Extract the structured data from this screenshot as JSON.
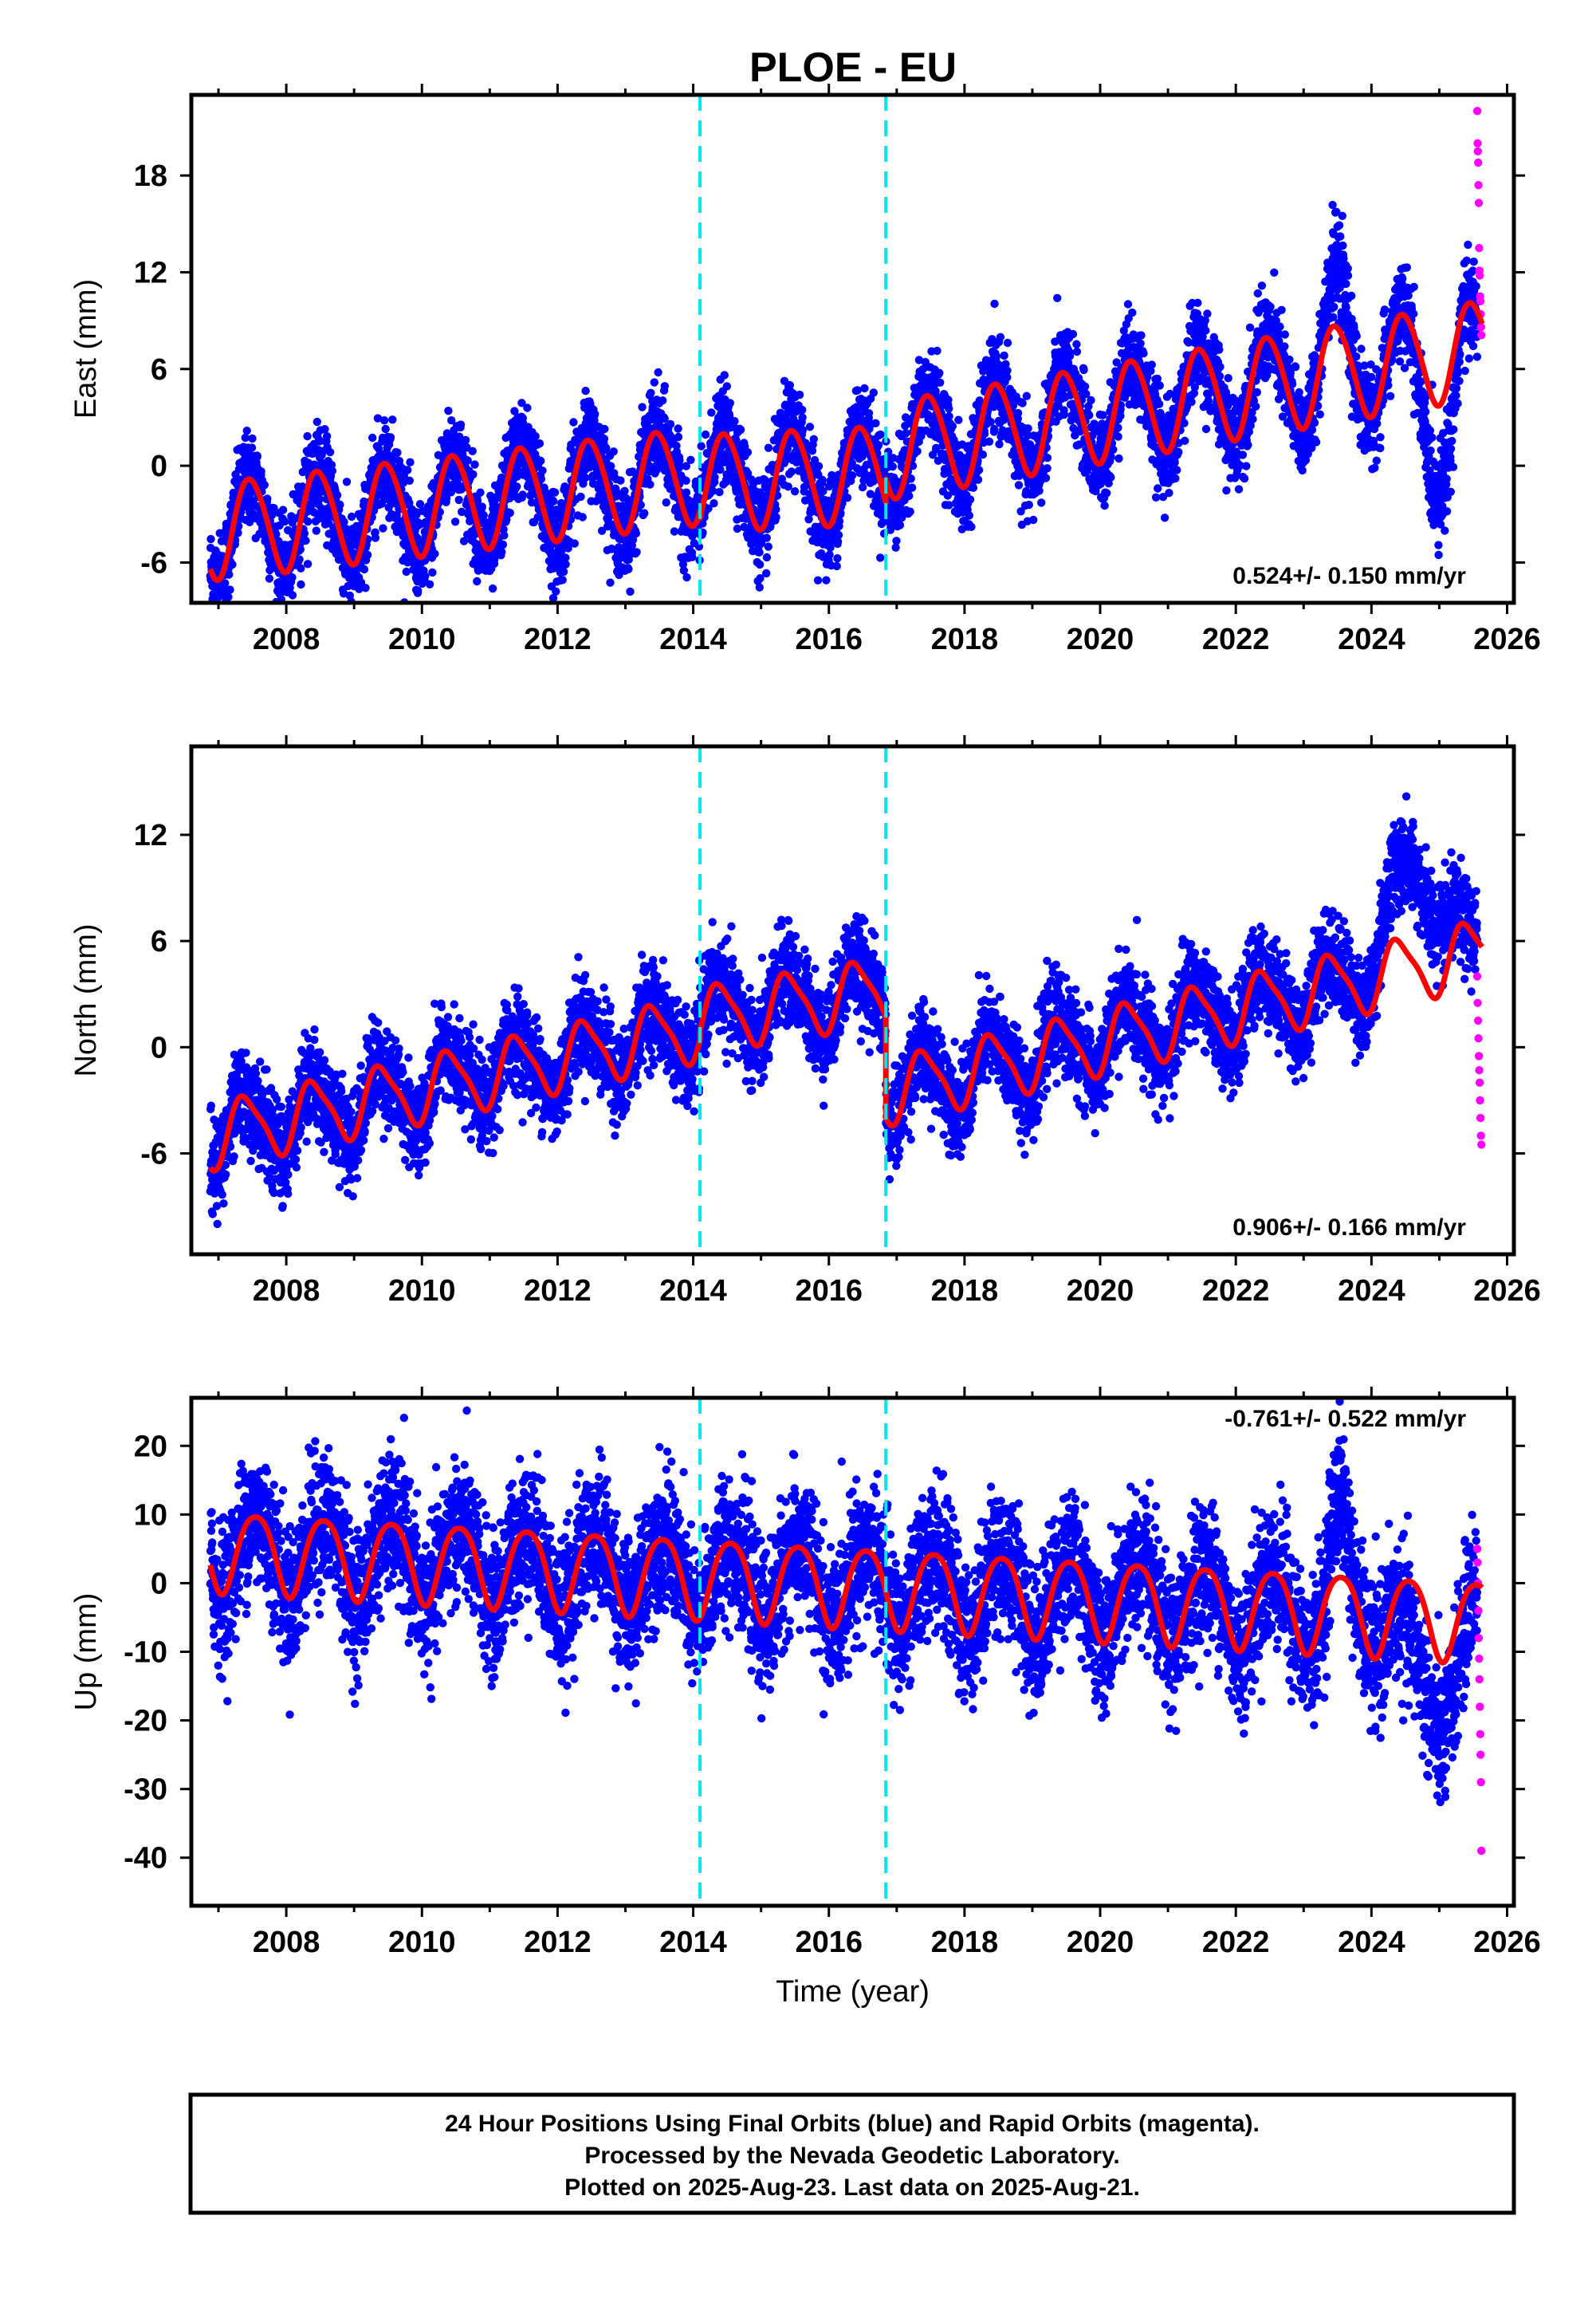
{
  "title": "PLOE - EU",
  "colors": {
    "final_orbits": "#0000ff",
    "rapid_orbits": "#ff00ff",
    "model": "#ff0000",
    "steps": "#00e5ee",
    "frame": "#000000"
  },
  "chart_data": [
    {
      "type": "scatter",
      "component": "east",
      "ylabel": "East (mm)",
      "xlim": [
        2006.6,
        2026.1
      ],
      "ylim": [
        -8.5,
        23
      ],
      "x_ticks": [
        2008,
        2010,
        2012,
        2014,
        2016,
        2018,
        2020,
        2022,
        2024,
        2026
      ],
      "x_minor": [
        2007,
        2009,
        2011,
        2013,
        2015,
        2017,
        2019,
        2021,
        2023,
        2025
      ],
      "y_ticks": [
        -6,
        0,
        6,
        12,
        18
      ],
      "rate_text": "0.524+/- 0.150 mm/yr",
      "step_lines_x": [
        2014.1,
        2016.84
      ],
      "model": {
        "segments": [
          {
            "from": 2006.88,
            "to": 2014.1,
            "value_at_start": -4.0,
            "slope": 0.48
          },
          {
            "from": 2014.1,
            "to": 2016.84,
            "value_at_start": -1.0,
            "slope": 0.2
          },
          {
            "from": 2016.84,
            "to": 2025.63,
            "value_at_start": 1.0,
            "slope": 0.72
          }
        ],
        "annual_amplitude": 3.0,
        "annual_peak": 0.47,
        "semiannual_amplitude": 0.25,
        "semiannual_peak": 0.3
      },
      "noise": 1.4,
      "rapid": {
        "from": 2025.56,
        "to": 2025.62,
        "values": [
          22,
          20,
          19.5,
          18.8,
          17.4,
          16.3,
          13.5,
          12.1,
          11.8,
          10.5,
          10.2,
          9.4,
          8.6,
          8.1
        ]
      },
      "events": [
        {
          "from": 2023.2,
          "to": 2023.75,
          "offset": 3.5
        },
        {
          "from": 2024.6,
          "to": 2025.35,
          "offset": -5.5
        }
      ]
    },
    {
      "type": "scatter",
      "component": "north",
      "ylabel": "North (mm)",
      "xlim": [
        2006.6,
        2026.1
      ],
      "ylim": [
        -11.7,
        17
      ],
      "x_ticks": [
        2008,
        2010,
        2012,
        2014,
        2016,
        2018,
        2020,
        2022,
        2024,
        2026
      ],
      "x_minor": [
        2007,
        2009,
        2011,
        2013,
        2015,
        2017,
        2019,
        2021,
        2023,
        2025
      ],
      "y_ticks": [
        -6,
        0,
        6,
        12
      ],
      "rate_text": "0.906+/- 0.166 mm/yr",
      "step_lines_x": [
        2014.1,
        2016.84
      ],
      "model": {
        "segments": [
          {
            "from": 2006.88,
            "to": 2014.1,
            "value_at_start": -5.0,
            "slope": 0.85
          },
          {
            "from": 2014.1,
            "to": 2016.84,
            "value_at_start": 1.6,
            "slope": 0.6
          },
          {
            "from": 2016.84,
            "to": 2025.63,
            "value_at_start": -2.5,
            "slope": 0.9
          }
        ],
        "annual_amplitude": 1.8,
        "annual_peak": 0.4,
        "semiannual_amplitude": 0.4,
        "semiannual_peak": 0.25
      },
      "noise": 1.3,
      "rapid": {
        "from": 2025.56,
        "to": 2025.62,
        "values": [
          4.0,
          2.5,
          1.5,
          0.5,
          -0.5,
          -1.3,
          -2.0,
          -3.0,
          -4.0,
          -5.0,
          -5.5
        ]
      },
      "events": [
        {
          "from": 2023.9,
          "to": 2025.35,
          "offset": 5.0
        }
      ]
    },
    {
      "type": "scatter",
      "component": "up",
      "ylabel": "Up (mm)",
      "xlim": [
        2006.6,
        2026.1
      ],
      "ylim": [
        -47,
        27
      ],
      "x_ticks": [
        2008,
        2010,
        2012,
        2014,
        2016,
        2018,
        2020,
        2022,
        2024,
        2026
      ],
      "x_minor": [
        2007,
        2009,
        2011,
        2013,
        2015,
        2017,
        2019,
        2021,
        2023,
        2025
      ],
      "y_ticks": [
        -40,
        -30,
        -20,
        -10,
        0,
        10,
        20
      ],
      "rate_text": "-0.761+/- 0.522 mm/yr",
      "xlabel": "Time (year)",
      "step_lines_x": [
        2014.1,
        2016.84
      ],
      "model": {
        "segments": [
          {
            "from": 2006.88,
            "to": 2025.63,
            "value_at_start": 5.0,
            "slope": -0.55
          }
        ],
        "annual_amplitude": 5.8,
        "annual_peak": 0.55,
        "semiannual_amplitude": 0.8,
        "semiannual_peak": 0.3
      },
      "noise": 5.0,
      "rapid": {
        "from": 2025.56,
        "to": 2025.62,
        "values": [
          5,
          3,
          0,
          -4,
          -8,
          -11,
          -14,
          -18,
          -22,
          -25,
          -29,
          -39
        ]
      },
      "events": [
        {
          "from": 2023.3,
          "to": 2023.75,
          "offset": 12
        },
        {
          "from": 2024.3,
          "to": 2025.5,
          "offset": -12
        }
      ]
    }
  ],
  "footer": {
    "line1": "24 Hour Positions Using Final Orbits (blue) and Rapid Orbits (magenta).",
    "line2": "Processed by the Nevada Geodetic Laboratory.",
    "line3": "Plotted on 2025-Aug-23. Last data on 2025-Aug-21."
  }
}
